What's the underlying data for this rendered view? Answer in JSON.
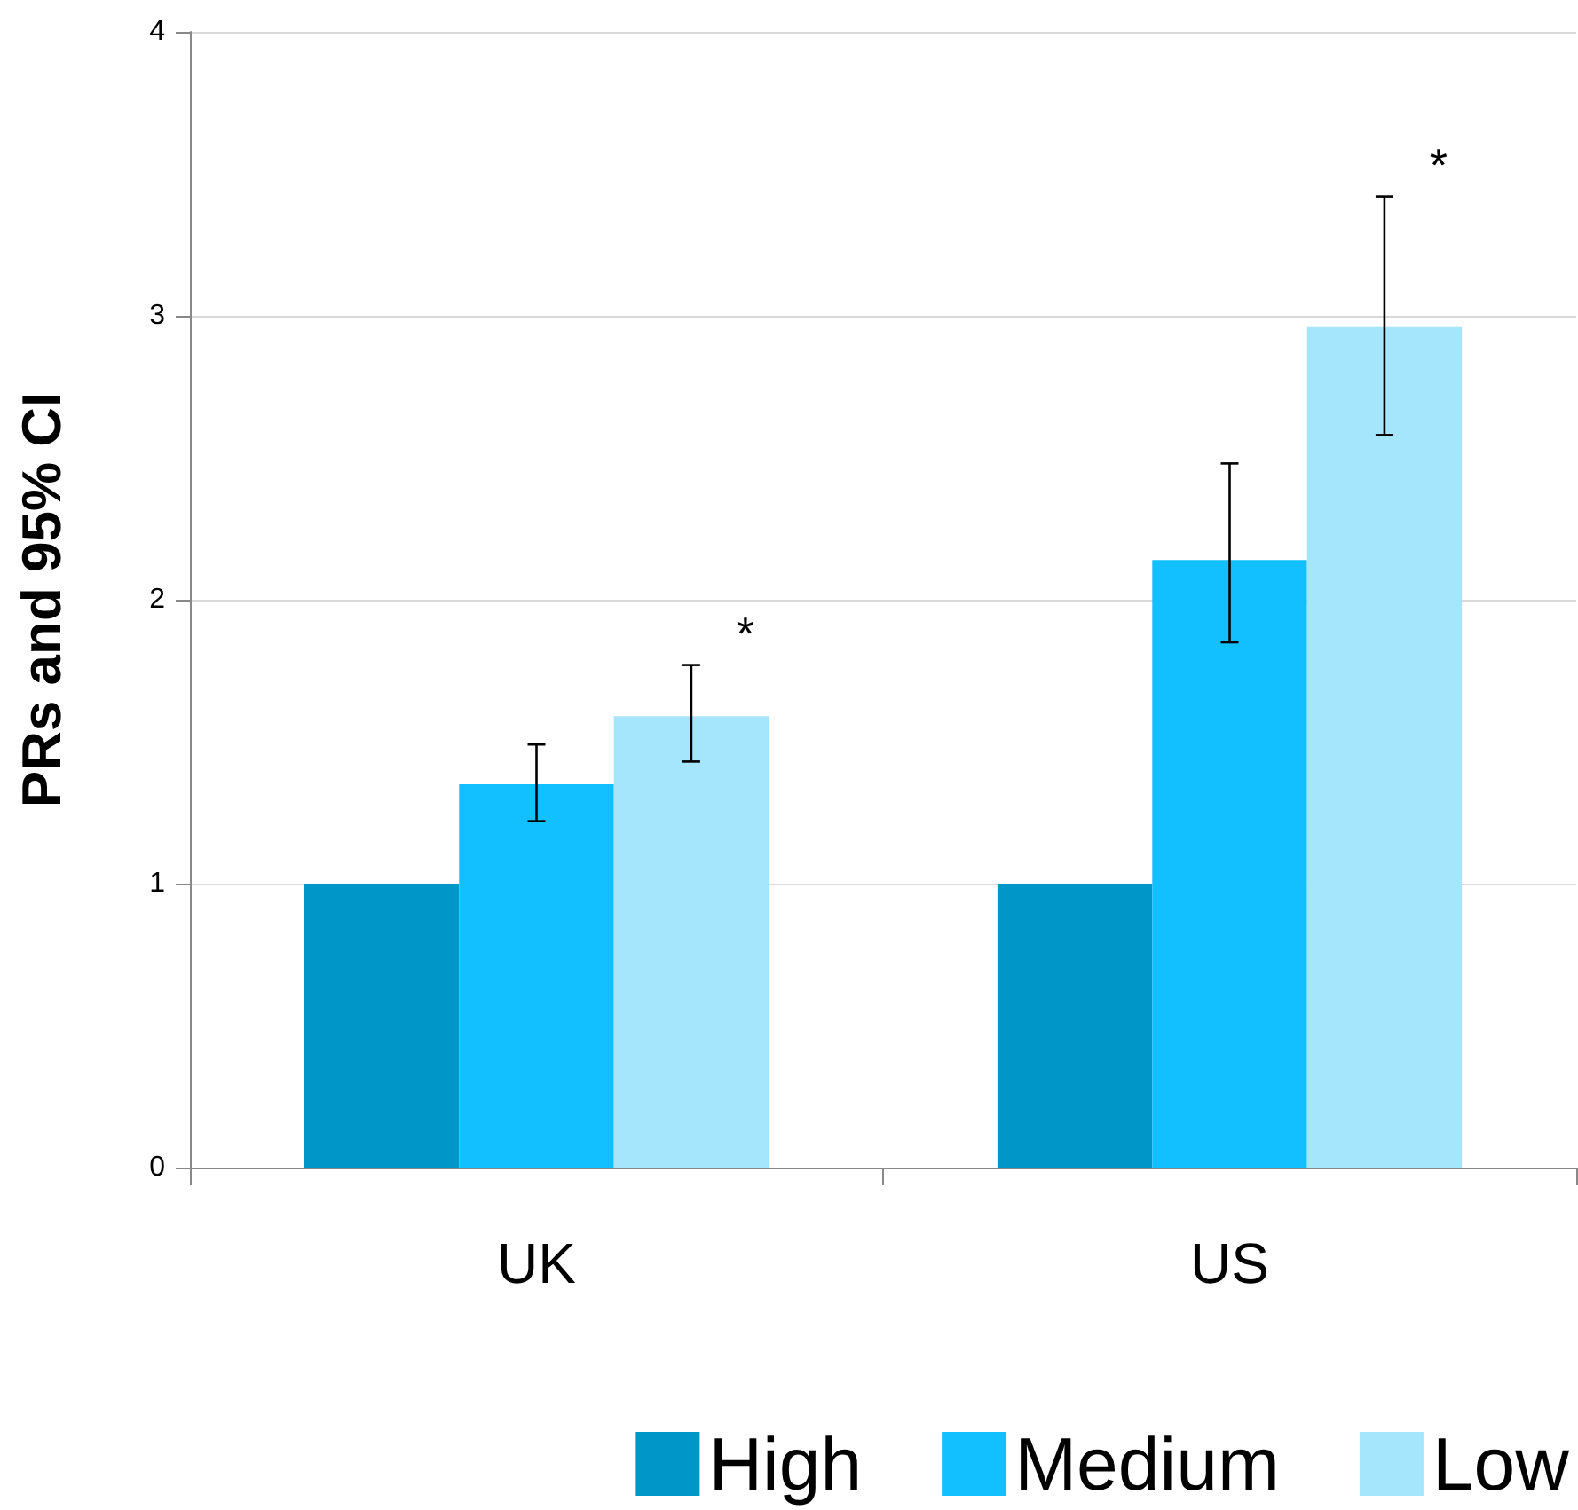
{
  "chart_data": {
    "type": "bar",
    "ylabel": "PRs and 95% CI",
    "categories": [
      "UK",
      "US"
    ],
    "series": [
      {
        "name": "High",
        "color": "#0096c8",
        "values": [
          1.0,
          1.0
        ],
        "errors": [
          null,
          null
        ]
      },
      {
        "name": "Medium",
        "color": "#12c0ff",
        "values": [
          1.35,
          2.14
        ],
        "errors": [
          [
            1.22,
            1.49
          ],
          [
            1.85,
            2.48
          ]
        ]
      },
      {
        "name": "Low",
        "color": "#a5e6fc",
        "values": [
          1.59,
          2.96
        ],
        "errors": [
          [
            1.43,
            1.77
          ],
          [
            2.58,
            3.42
          ]
        ]
      }
    ],
    "ylim": [
      0,
      4
    ],
    "yticks": [
      0,
      1,
      2,
      3,
      4
    ],
    "grid": "y",
    "legend": "bottom",
    "annotations": [
      "*",
      "*"
    ]
  }
}
